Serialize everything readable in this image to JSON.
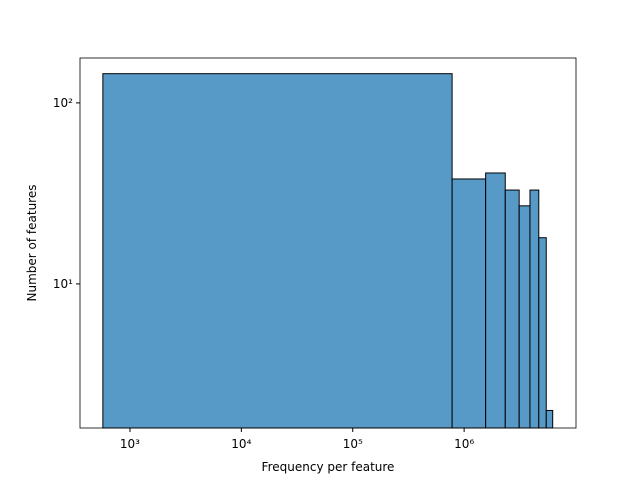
{
  "chart_data": {
    "type": "histogram",
    "xlabel": "Frequency per feature",
    "ylabel": "Number of features",
    "bins": [
      571,
      780000,
      1560000,
      2340000,
      3120000,
      3900000,
      4680000,
      5460000,
      6240000
    ],
    "counts": [
      145,
      38,
      41,
      33,
      27,
      33,
      18,
      2
    ],
    "color": "#5799c7",
    "edgecolor": "#000000",
    "xscale": "log",
    "yscale": "log",
    "xlim": [
      356,
      10100000
    ],
    "ylim": [
      1.6,
      177
    ],
    "xticks": [
      {
        "value": 1000,
        "label": "10³"
      },
      {
        "value": 10000,
        "label": "10⁴"
      },
      {
        "value": 100000,
        "label": "10⁵"
      },
      {
        "value": 1000000,
        "label": "10⁶"
      }
    ],
    "yticks": [
      {
        "value": 10,
        "label": "10¹"
      },
      {
        "value": 100,
        "label": "10²"
      }
    ]
  }
}
